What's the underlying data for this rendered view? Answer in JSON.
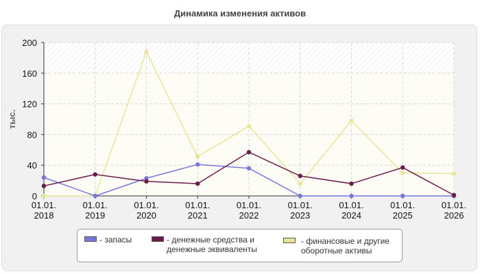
{
  "chart_data": {
    "type": "line",
    "title": "Динамика изменения активов",
    "ylabel": "тыс.",
    "xlabel": "",
    "x": [
      [
        "01.01.",
        "2018"
      ],
      [
        "01.01.",
        "2019"
      ],
      [
        "01.01.",
        "2020"
      ],
      [
        "01.01.",
        "2021"
      ],
      [
        "01.01.",
        "2022"
      ],
      [
        "01.01.",
        "2023"
      ],
      [
        "01.01.",
        "2024"
      ],
      [
        "01.01.",
        "2025"
      ],
      [
        "01.01.",
        "2026"
      ]
    ],
    "yticks": [
      0,
      40,
      80,
      120,
      160,
      200
    ],
    "ylim": [
      0,
      200
    ],
    "grid": true,
    "legend_position": "bottom",
    "series": [
      {
        "name": "- запасы",
        "color": "#7777dd",
        "values": [
          24,
          0,
          23,
          41,
          36,
          0,
          0,
          0,
          0
        ]
      },
      {
        "name": "- денежные средства и денежные эквиваленты",
        "legend_lines": [
          "- денежные средства и",
          "денежные эквиваленты"
        ],
        "color": "#6b1a4b",
        "values": [
          13,
          28,
          19,
          16,
          57,
          26,
          16,
          37,
          1
        ]
      },
      {
        "name": "- финансовые и другие оборотные активы",
        "legend_lines": [
          "- финансовые и другие",
          "оборотные активы"
        ],
        "color": "#e6e696",
        "values": [
          0,
          0,
          188,
          51,
          91,
          16,
          98,
          30,
          29
        ]
      }
    ]
  }
}
